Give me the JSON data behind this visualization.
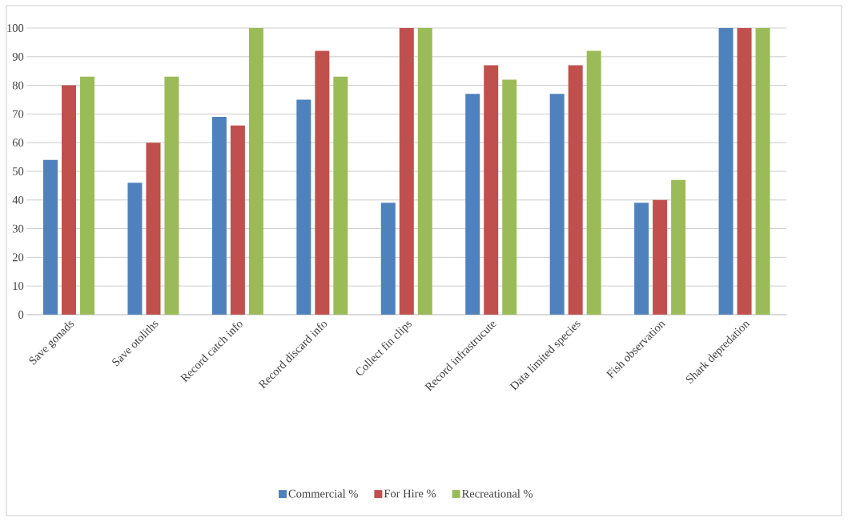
{
  "chart_data": {
    "type": "bar",
    "categories": [
      "Save gonads",
      "Save otoliths",
      "Record catch info",
      "Record discard info",
      "Collect fin clips",
      "Record infrastrucute",
      "Data limited species",
      "Fish observation",
      "Shark depredation"
    ],
    "series": [
      {
        "name": "Commercial %",
        "color": "#4f81bd",
        "values": [
          54,
          46,
          69,
          75,
          39,
          77,
          77,
          39,
          100
        ]
      },
      {
        "name": "For Hire %",
        "color": "#c0504d",
        "values": [
          80,
          60,
          66,
          92,
          100,
          87,
          87,
          40,
          100
        ]
      },
      {
        "name": "Recreational %",
        "color": "#9bbb59",
        "values": [
          83,
          83,
          100,
          83,
          100,
          82,
          92,
          47,
          100
        ]
      }
    ],
    "ylim": [
      0,
      100
    ],
    "yticks": [
      0,
      10,
      20,
      30,
      40,
      50,
      60,
      70,
      80,
      90,
      100
    ],
    "grid": "y",
    "legend": "bottom"
  }
}
